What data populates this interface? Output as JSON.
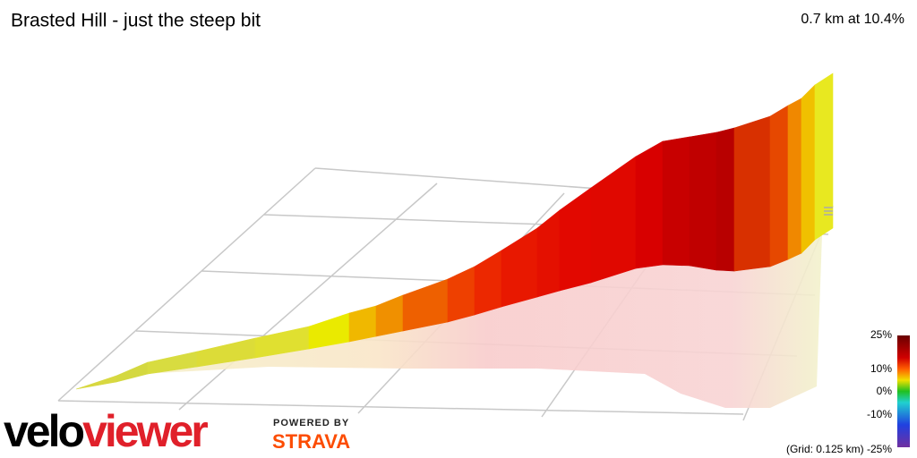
{
  "header": {
    "title": "Brasted Hill - just the steep bit",
    "summary": "0.7 km at 10.4%"
  },
  "legend": {
    "labels": [
      "25%",
      "10%",
      "0%",
      "-10%"
    ],
    "grid_note": "(Grid: 0.125 km) -25%"
  },
  "branding": {
    "logo_a": "velo",
    "logo_b": "viewer",
    "powered": "POWERED BY",
    "partner": "STRAVA"
  }
}
